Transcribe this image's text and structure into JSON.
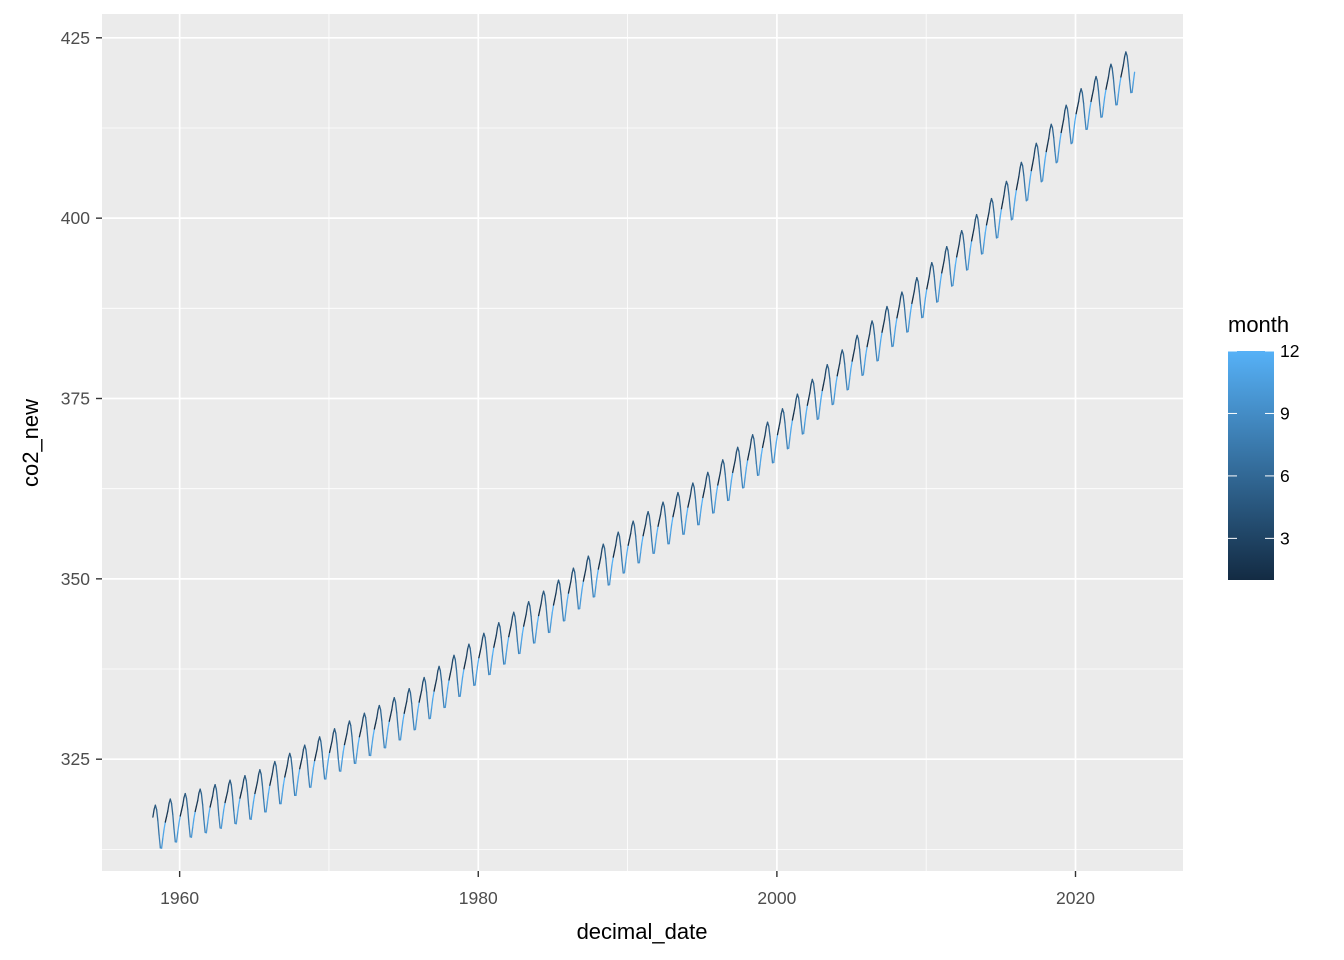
{
  "chart_data": {
    "type": "line",
    "title": "",
    "xlabel": "decimal_date",
    "ylabel": "co2_new",
    "xlim": [
      1954.8,
      2027.2
    ],
    "ylim": [
      309.5,
      428.3
    ],
    "x_ticks": [
      1960,
      1980,
      2000,
      2020
    ],
    "x_tick_labels": [
      "1960",
      "1980",
      "2000",
      "2020"
    ],
    "y_ticks": [
      325,
      350,
      375,
      400,
      425
    ],
    "y_tick_labels": [
      "325",
      "350",
      "375",
      "400",
      "425"
    ],
    "grid": true,
    "background": "#EBEBEB",
    "color_by": "month",
    "color_scale": {
      "low": "#132B43",
      "high": "#56B1F7",
      "min": 1,
      "max": 12,
      "legend_ticks": [
        3,
        6,
        9,
        12
      ],
      "legend_tick_labels": [
        "3",
        "6",
        "9",
        "12"
      ]
    },
    "legend": {
      "title": "month",
      "position": "right"
    },
    "series": [
      {
        "start_year": 1958,
        "start_month": 3,
        "end_year": 2023,
        "end_month": 12,
        "annual_means": [
          [
            1958,
            315.2
          ],
          [
            1960,
            316.9
          ],
          [
            1965,
            320.0
          ],
          [
            1970,
            325.7
          ],
          [
            1975,
            331.1
          ],
          [
            1980,
            338.8
          ],
          [
            1985,
            346.1
          ],
          [
            1990,
            354.4
          ],
          [
            1995,
            361.0
          ],
          [
            2000,
            369.7
          ],
          [
            2005,
            379.9
          ],
          [
            2010,
            389.9
          ],
          [
            2015,
            401.0
          ],
          [
            2020,
            414.2
          ],
          [
            2023,
            419.3
          ]
        ],
        "seasonal_cycle": [
          0.2,
          0.9,
          1.6,
          2.6,
          3.1,
          2.4,
          0.8,
          -1.3,
          -3.1,
          -3.2,
          -1.9,
          -0.7
        ]
      }
    ]
  }
}
